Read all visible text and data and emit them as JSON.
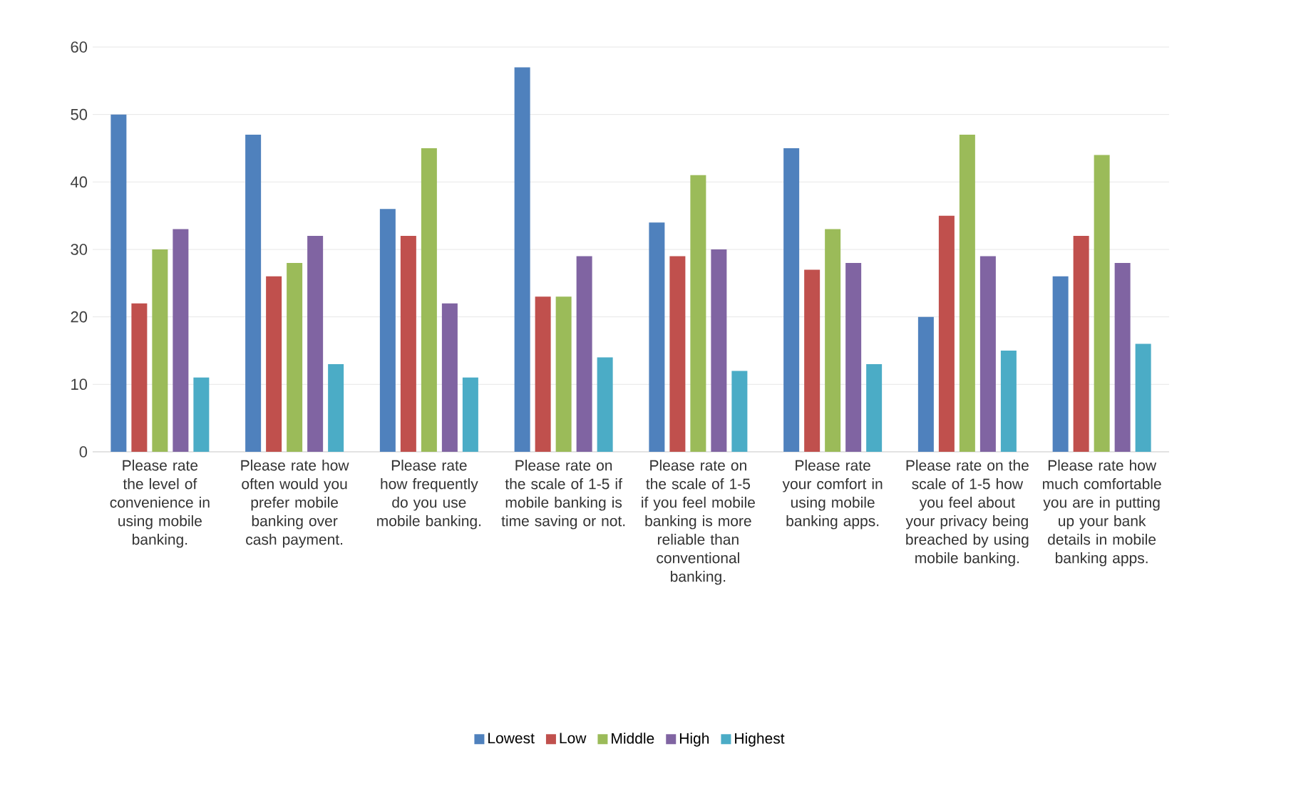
{
  "chart_data": {
    "type": "bar",
    "categories": [
      "Please rate the level of convenience in using mobile banking.",
      "Please rate how often would you prefer mobile banking over cash payment.",
      "Please rate how frequently do you use mobile banking.",
      "Please rate on the scale of 1-5 if mobile banking is time saving or not.",
      "Please rate on the scale of 1-5 if you feel mobile banking is more reliable than conventional banking.",
      "Please rate your comfort in using mobile banking apps.",
      "Please rate on the scale of 1-5 how you feel about your privacy being breached by using mobile banking.",
      "Please rate how much comfortable you are in putting up your bank details in mobile banking apps."
    ],
    "series": [
      {
        "name": "Lowest",
        "color": "#4f81bd",
        "values": [
          50,
          47,
          36,
          57,
          34,
          45,
          20,
          26
        ]
      },
      {
        "name": "Low",
        "color": "#c0504d",
        "values": [
          22,
          26,
          32,
          23,
          29,
          27,
          35,
          32
        ]
      },
      {
        "name": "Middle",
        "color": "#9bbb59",
        "values": [
          30,
          28,
          45,
          23,
          41,
          33,
          47,
          44
        ]
      },
      {
        "name": "High",
        "color": "#8064a2",
        "values": [
          33,
          32,
          22,
          29,
          30,
          28,
          29,
          28
        ]
      },
      {
        "name": "Highest",
        "color": "#4bacc6",
        "values": [
          11,
          13,
          11,
          14,
          12,
          13,
          15,
          16
        ]
      }
    ],
    "ylim": [
      0,
      60
    ],
    "yticks": [
      0,
      10,
      20,
      30,
      40,
      50,
      60
    ],
    "grid": "y",
    "legend": "bottom"
  }
}
